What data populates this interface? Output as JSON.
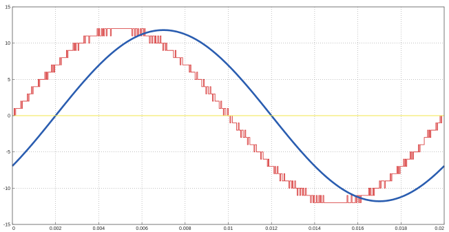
{
  "chart_data": {
    "type": "line",
    "title": "",
    "xlabel": "",
    "ylabel": "",
    "xlim": [
      0,
      0.02
    ],
    "ylim": [
      -15,
      15
    ],
    "grid": true,
    "x_ticks": [
      "0",
      "0.002",
      "0.004",
      "0.006",
      "0.008",
      "0.01",
      "0.012",
      "0.014",
      "0.016",
      "0.018",
      "0.02"
    ],
    "y_ticks": [
      "-15",
      "-10",
      "-5",
      "0",
      "5",
      "10",
      "15"
    ],
    "series": [
      {
        "color": "#d42a2a",
        "style": "stepped multilevel",
        "amplitude": 12,
        "frequency_hz": 50,
        "phase_offset_s": 0,
        "x": [
          0,
          0.001,
          0.002,
          0.003,
          0.004,
          0.005,
          0.006,
          0.007,
          0.008,
          0.009,
          0.01,
          0.011,
          0.012,
          0.013,
          0.014,
          0.015,
          0.016,
          0.017,
          0.018,
          0.019,
          0.02
        ],
        "y": [
          0,
          3.7,
          7.1,
          9.7,
          11.4,
          12,
          11.4,
          9.7,
          7.1,
          3.7,
          0,
          -3.7,
          -7.1,
          -9.7,
          -11.4,
          -12,
          -11.4,
          -9.7,
          -7.1,
          -3.7,
          0
        ]
      },
      {
        "color": "#2a5db0",
        "style": "smooth",
        "amplitude": 11.8,
        "frequency_hz": 50,
        "phase_offset_s": 0.002,
        "x": [
          0,
          0.001,
          0.002,
          0.003,
          0.004,
          0.005,
          0.006,
          0.007,
          0.008,
          0.009,
          0.01,
          0.011,
          0.012,
          0.013,
          0.014,
          0.015,
          0.016,
          0.017,
          0.018,
          0.019,
          0.02
        ],
        "y": [
          -6.9,
          -3.6,
          0,
          3.6,
          6.9,
          9.5,
          11.2,
          11.8,
          11.2,
          9.5,
          6.9,
          3.6,
          0,
          -3.6,
          -6.9,
          -9.5,
          -11.2,
          -11.8,
          -11.2,
          -9.5,
          -6.9
        ]
      },
      {
        "color": "#f2e44a",
        "style": "flat",
        "x": [
          0,
          0.02
        ],
        "y": [
          0,
          0
        ]
      }
    ]
  }
}
